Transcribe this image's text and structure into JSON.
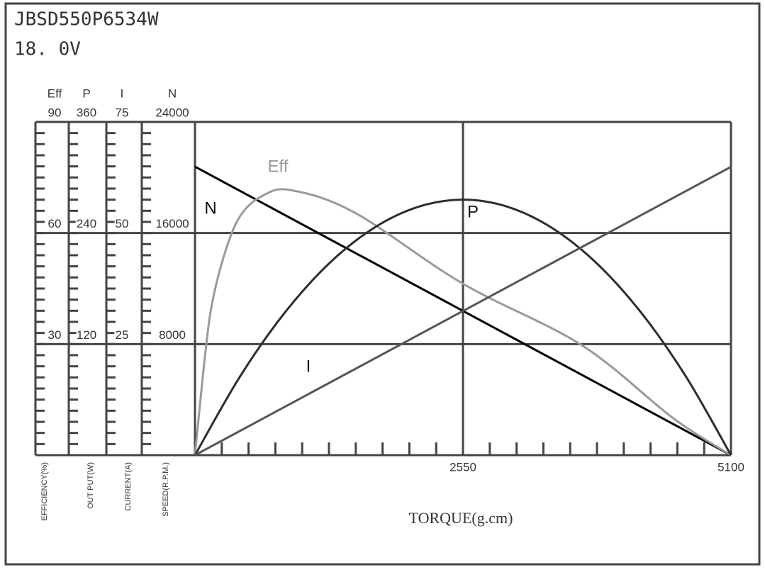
{
  "chart_data": {
    "type": "motor-curve",
    "title": "JBSD550P6534W",
    "subtitle": "18. 0V",
    "x_label": "TORQUE(g.cm)",
    "xlim": [
      0,
      5100
    ],
    "xticks": [
      2550,
      5100
    ],
    "grid": true,
    "axes": [
      {
        "name": "Eff",
        "label": "EFFICIENCY(%)",
        "ylim": [
          0,
          90
        ],
        "yticks": [
          30,
          60,
          90
        ]
      },
      {
        "name": "P",
        "label": "OUT PUT(W)",
        "ylim": [
          0,
          360
        ],
        "yticks": [
          120,
          240,
          360
        ]
      },
      {
        "name": "I",
        "label": "CURRENT(A)",
        "ylim": [
          0,
          75
        ],
        "yticks": [
          25,
          50,
          75
        ]
      },
      {
        "name": "N",
        "label": "SPEED(R.P.M.)",
        "ylim": [
          0,
          24000
        ],
        "yticks": [
          8000,
          16000,
          24000
        ]
      }
    ],
    "series": [
      {
        "name": "N",
        "axis": 3,
        "color": "#000000",
        "x": [
          0,
          5100
        ],
        "values": [
          20780,
          0
        ]
      },
      {
        "name": "Eff",
        "axis": 0,
        "color": "#9a9a9a",
        "x": [
          0,
          100,
          170,
          300,
          440,
          640,
          910,
          1520,
          2550,
          3680,
          4550,
          5100
        ],
        "values": [
          0,
          28,
          42,
          56,
          65,
          70,
          71.6,
          65.5,
          46.3,
          29.7,
          10,
          0
        ]
      },
      {
        "name": "P",
        "axis": 1,
        "color": "#2e2e2e",
        "x": [
          0,
          425,
          850,
          1275,
          1700,
          2125,
          2550,
          2975,
          3400,
          3825,
          4250,
          4675,
          5100
        ],
        "values": [
          0,
          84.3,
          153.3,
          207,
          245.3,
          268.3,
          276,
          268.3,
          245.3,
          207,
          153.3,
          84.3,
          0
        ]
      },
      {
        "name": "I",
        "axis": 2,
        "color": "#555555",
        "x": [
          0,
          5100
        ],
        "values": [
          0,
          64.9
        ]
      }
    ]
  }
}
